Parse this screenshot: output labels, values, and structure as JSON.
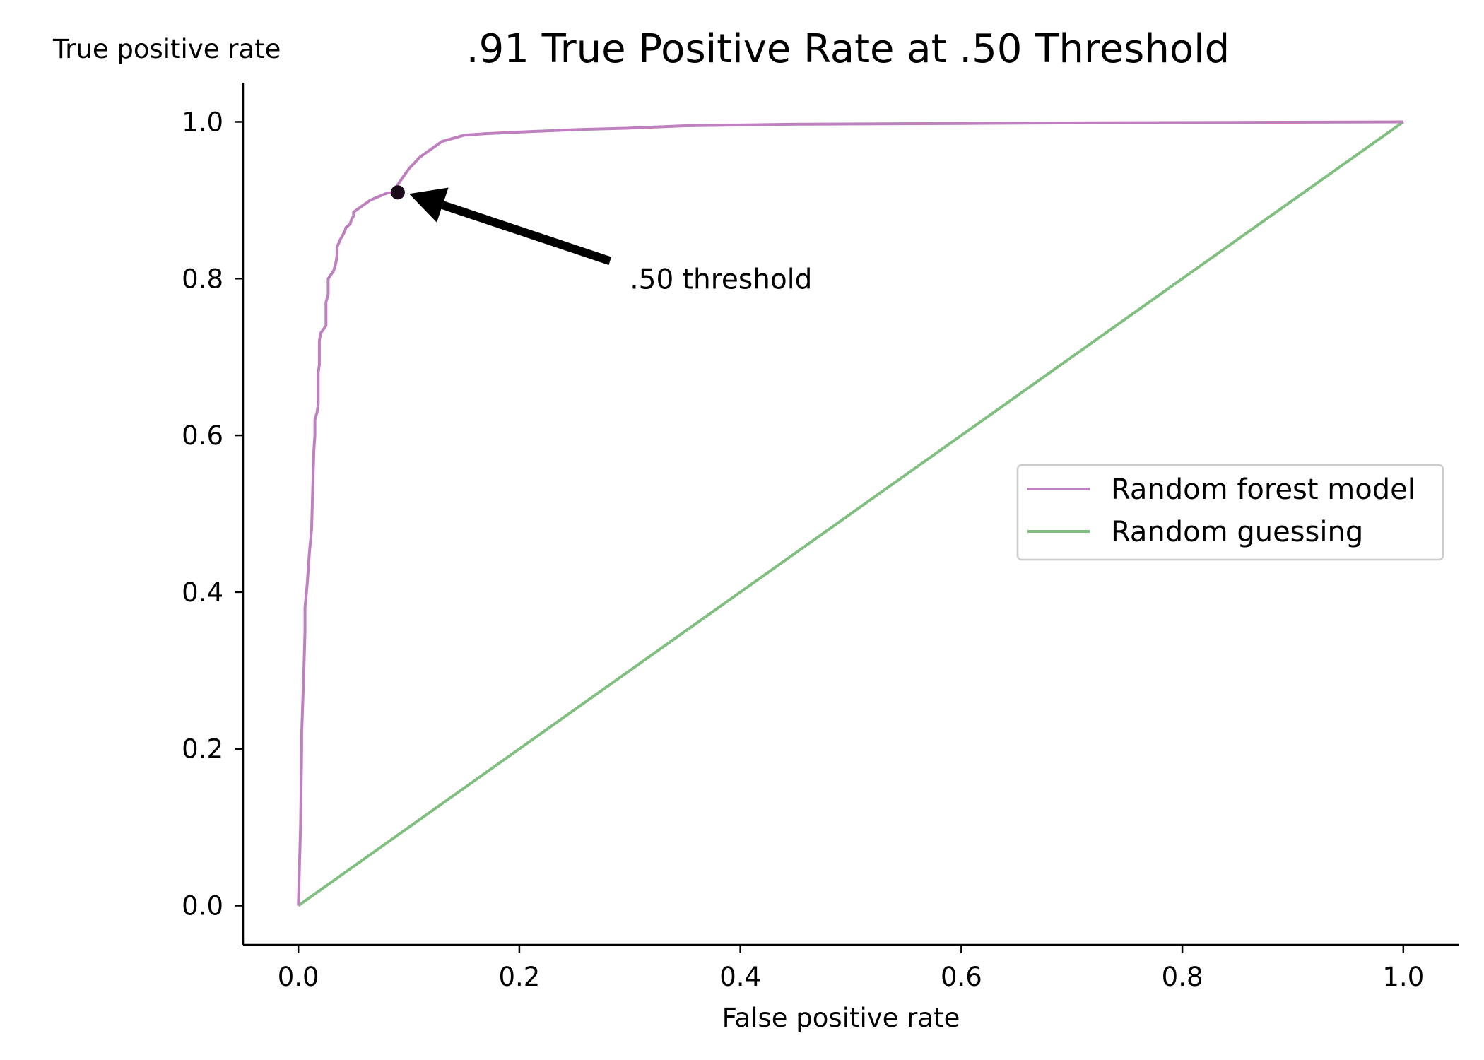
{
  "chart_data": {
    "type": "line",
    "title": ".91 True Positive Rate at .50 Threshold",
    "xlabel": "False positive rate",
    "ylabel": "True positive rate",
    "xlim": [
      -0.05,
      1.05
    ],
    "ylim": [
      -0.05,
      1.05
    ],
    "x_ticks": [
      0.0,
      0.2,
      0.4,
      0.6,
      0.8,
      1.0
    ],
    "y_ticks": [
      0.0,
      0.2,
      0.4,
      0.6,
      0.8,
      1.0
    ],
    "x_tick_labels": [
      "0.0",
      "0.2",
      "0.4",
      "0.6",
      "0.8",
      "1.0"
    ],
    "y_tick_labels": [
      "0.0",
      "0.2",
      "0.4",
      "0.6",
      "0.8",
      "1.0"
    ],
    "grid": false,
    "legend_position": "center-right",
    "series": [
      {
        "name": "Random forest model",
        "color": "#bf80bf",
        "x": [
          0.0,
          0.002,
          0.003,
          0.003,
          0.005,
          0.006,
          0.006,
          0.008,
          0.01,
          0.012,
          0.014,
          0.015,
          0.015,
          0.017,
          0.018,
          0.018,
          0.019,
          0.019,
          0.02,
          0.025,
          0.025,
          0.027,
          0.027,
          0.032,
          0.034,
          0.035,
          0.035,
          0.038,
          0.04,
          0.042,
          0.043,
          0.047,
          0.048,
          0.05,
          0.05,
          0.055,
          0.06,
          0.065,
          0.07,
          0.075,
          0.08,
          0.085,
          0.09,
          0.1,
          0.11,
          0.12,
          0.13,
          0.15,
          0.17,
          0.2,
          0.25,
          0.3,
          0.35,
          0.45,
          0.6,
          0.75,
          1.0
        ],
        "y": [
          0.0,
          0.1,
          0.2,
          0.22,
          0.3,
          0.35,
          0.38,
          0.41,
          0.45,
          0.48,
          0.58,
          0.6,
          0.62,
          0.63,
          0.64,
          0.68,
          0.69,
          0.72,
          0.73,
          0.74,
          0.77,
          0.78,
          0.8,
          0.81,
          0.82,
          0.83,
          0.84,
          0.85,
          0.855,
          0.86,
          0.865,
          0.87,
          0.875,
          0.88,
          0.885,
          0.89,
          0.895,
          0.9,
          0.903,
          0.906,
          0.909,
          0.91,
          0.92,
          0.94,
          0.955,
          0.965,
          0.975,
          0.983,
          0.985,
          0.987,
          0.99,
          0.992,
          0.995,
          0.997,
          0.998,
          0.999,
          1.0
        ]
      },
      {
        "name": "Random guessing",
        "color": "#80bf80",
        "x": [
          0.0,
          1.0
        ],
        "y": [
          0.0,
          1.0
        ]
      }
    ],
    "annotations": [
      {
        "text": ".50 threshold",
        "point": [
          0.09,
          0.91
        ],
        "text_pos": [
          0.3,
          0.8
        ],
        "arrow_color": "#000000"
      }
    ]
  }
}
